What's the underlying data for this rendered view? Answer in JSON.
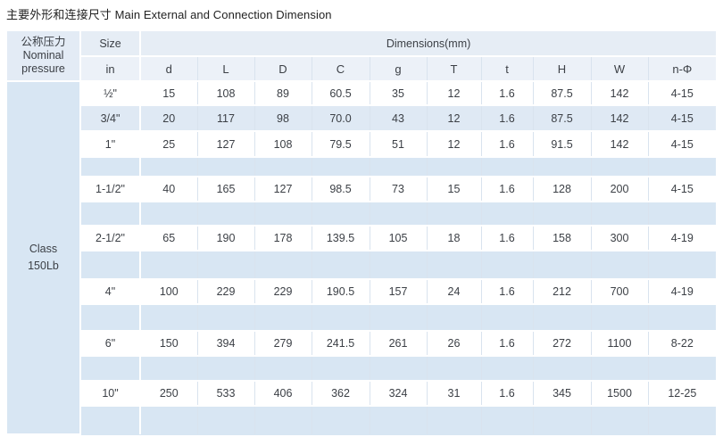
{
  "title": "主要外形和连接尺寸 Main External and Connection Dimension",
  "table": {
    "pressure_header_lines": [
      "公称压力",
      "Nominal",
      "pressure"
    ],
    "pressure_class_lines": [
      "Class",
      "150Lb"
    ],
    "size_label": "Size",
    "size_unit_label": "in",
    "dimensions_label": "Dimensions(mm)",
    "column_headers": [
      "d",
      "L",
      "D",
      "C",
      "g",
      "T",
      "t",
      "H",
      "W",
      "n-Φ"
    ],
    "rows": [
      {
        "size": "½\"",
        "values": [
          "15",
          "108",
          "89",
          "60.5",
          "35",
          "12",
          "1.6",
          "87.5",
          "142",
          "4-15"
        ]
      },
      {
        "size": "3/4\"",
        "values": [
          "20",
          "117",
          "98",
          "70.0",
          "43",
          "12",
          "1.6",
          "87.5",
          "142",
          "4-15"
        ]
      },
      {
        "size": "1\"",
        "values": [
          "25",
          "127",
          "108",
          "79.5",
          "51",
          "12",
          "1.6",
          "91.5",
          "142",
          "4-15"
        ]
      },
      {
        "size": "1-1/2\"",
        "values": [
          "40",
          "165",
          "127",
          "98.5",
          "73",
          "15",
          "1.6",
          "128",
          "200",
          "4-15"
        ]
      },
      {
        "size": "2-1/2\"",
        "values": [
          "65",
          "190",
          "178",
          "139.5",
          "105",
          "18",
          "1.6",
          "158",
          "300",
          "4-19"
        ]
      },
      {
        "size": "4\"",
        "values": [
          "100",
          "229",
          "229",
          "190.5",
          "157",
          "24",
          "1.6",
          "212",
          "700",
          "4-19"
        ]
      },
      {
        "size": "6\"",
        "values": [
          "150",
          "394",
          "279",
          "241.5",
          "261",
          "26",
          "1.6",
          "272",
          "1100",
          "8-22"
        ]
      },
      {
        "size": "10\"",
        "values": [
          "250",
          "533",
          "406",
          "362",
          "324",
          "31",
          "1.6",
          "345",
          "1500",
          "12-25"
        ]
      }
    ],
    "colors": {
      "table_background": "#d8e6f3",
      "header_row1_background": "#e6edf5",
      "header_row2_background": "#ecf1f8",
      "data_row_background": "#ffffff",
      "tinted_row_background": "#dfe9f4",
      "grid_line": "#d9e3ee",
      "separator_line": "#ffffff",
      "text": "#3c4046"
    }
  }
}
